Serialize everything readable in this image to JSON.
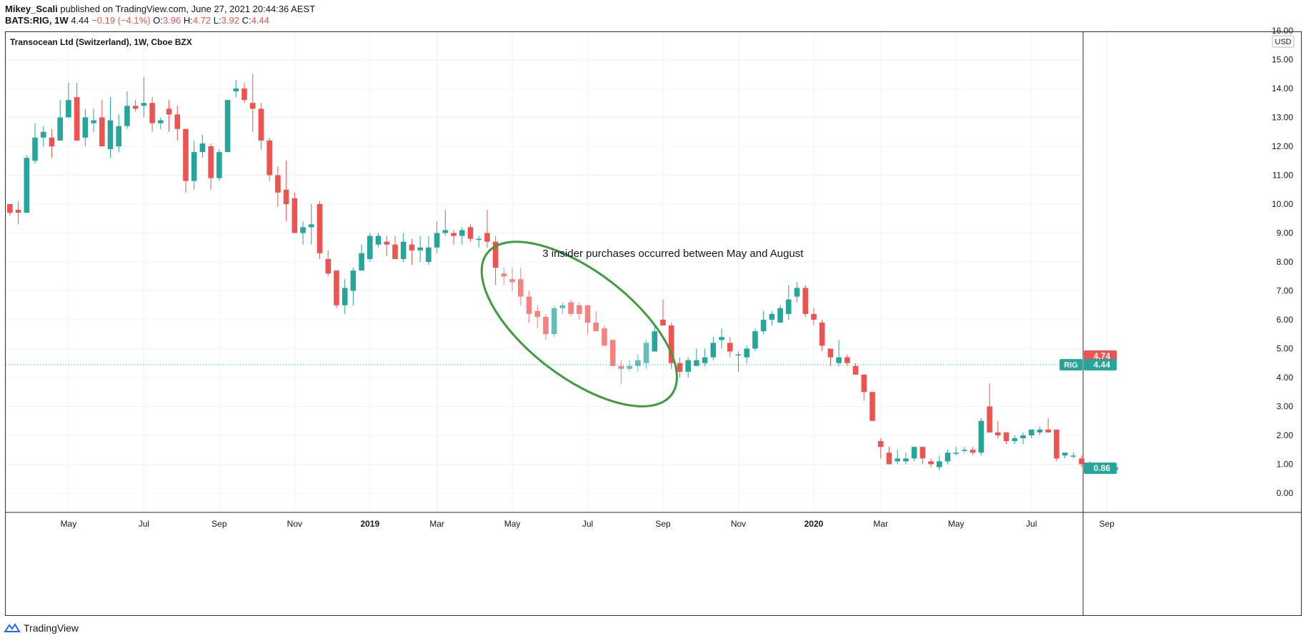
{
  "header": {
    "author": "Mikey_Scali",
    "published_text": "published on TradingView.com, June 27, 2021 20:44:36 AEST",
    "symbol": "BATS:RIG, 1W",
    "last": "4.44",
    "change": "−0.19 (−4.1%)",
    "o_label": "O:",
    "o_value": "3.96",
    "h_label": "H:",
    "h_value": "4.72",
    "l_label": "L:",
    "l_value": "3.92",
    "c_label": "C:",
    "c_value": "4.44"
  },
  "footer": {
    "brand": "TradingView",
    "logo_icon": "tradingview-logo-icon"
  },
  "colors": {
    "up": "#26a69a",
    "down": "#ef5350",
    "annotation": "#3f9b3f",
    "grid": "#f0f3fa"
  },
  "chart_data": {
    "type": "candlestick",
    "title": "Transocean Ltd (Switzerland), 1W, Cboe BZX",
    "currency": "USD",
    "ylim": [
      -0.6,
      16.0
    ],
    "y_ticks": [
      "16.00",
      "15.00",
      "14.00",
      "13.00",
      "12.00",
      "11.00",
      "10.00",
      "9.00",
      "8.00",
      "7.00",
      "6.00",
      "5.00",
      "4.00",
      "3.00",
      "2.00",
      "1.00",
      "0.00"
    ],
    "x_ticks": [
      {
        "label": "May",
        "index": 7.5,
        "bold": false
      },
      {
        "label": "Jul",
        "index": 16.5,
        "bold": false
      },
      {
        "label": "Sep",
        "index": 25.5,
        "bold": false
      },
      {
        "label": "Nov",
        "index": 34.5,
        "bold": false
      },
      {
        "label": "2019",
        "index": 43.5,
        "bold": true
      },
      {
        "label": "Mar",
        "index": 51.5,
        "bold": false
      },
      {
        "label": "May",
        "index": 60.5,
        "bold": false
      },
      {
        "label": "Jul",
        "index": 69.5,
        "bold": false
      },
      {
        "label": "Sep",
        "index": 78.5,
        "bold": false
      },
      {
        "label": "Nov",
        "index": 87.5,
        "bold": false
      },
      {
        "label": "2020",
        "index": 96.5,
        "bold": true
      },
      {
        "label": "Mar",
        "index": 104.5,
        "bold": false
      },
      {
        "label": "May",
        "index": 113.5,
        "bold": false
      },
      {
        "label": "Jul",
        "index": 122.5,
        "bold": false
      },
      {
        "label": "Sep",
        "index": 131.5,
        "bold": false
      }
    ],
    "price_labels": [
      {
        "text": "4.74",
        "value": 4.74,
        "color": "#ef5350",
        "tag": ""
      },
      {
        "text": "4.44",
        "value": 4.44,
        "color": "#26a69a",
        "tag": "RIG"
      },
      {
        "text": "0.86",
        "value": 0.86,
        "color": "#26a69a",
        "tag": ""
      }
    ],
    "last_price_line": 4.44,
    "annotation": {
      "text": "3 insider purchases occurred between May and August",
      "ellipse_start_index": 57.5,
      "ellipse_end_index": 79.5,
      "ellipse_top_value": 8.3,
      "ellipse_bottom_value": 3.4
    },
    "highlight_range": [
      59,
      76
    ],
    "ohlc": [
      [
        10.0,
        10.0,
        9.6,
        9.7
      ],
      [
        9.8,
        10.1,
        9.3,
        9.7
      ],
      [
        9.7,
        11.7,
        9.7,
        11.6
      ],
      [
        11.5,
        12.8,
        11.4,
        12.3
      ],
      [
        12.3,
        12.7,
        12.0,
        12.5
      ],
      [
        12.3,
        12.6,
        11.6,
        12.0
      ],
      [
        12.2,
        13.6,
        12.2,
        13.0
      ],
      [
        13.0,
        14.2,
        13.0,
        13.6
      ],
      [
        13.7,
        14.2,
        12.2,
        12.2
      ],
      [
        12.3,
        13.3,
        12.0,
        13.0
      ],
      [
        12.8,
        13.3,
        12.5,
        12.9
      ],
      [
        13.0,
        13.6,
        12.0,
        12.0
      ],
      [
        11.9,
        13.7,
        11.6,
        12.9
      ],
      [
        12.0,
        13.1,
        11.8,
        12.7
      ],
      [
        12.7,
        13.9,
        12.6,
        13.4
      ],
      [
        13.4,
        13.6,
        13.2,
        13.3
      ],
      [
        13.4,
        14.4,
        13.0,
        13.5
      ],
      [
        13.5,
        13.7,
        12.5,
        12.8
      ],
      [
        12.8,
        13.0,
        12.6,
        12.9
      ],
      [
        13.3,
        13.6,
        12.5,
        13.1
      ],
      [
        13.1,
        13.4,
        12.2,
        12.6
      ],
      [
        12.6,
        12.6,
        10.4,
        10.8
      ],
      [
        10.8,
        12.2,
        10.5,
        11.8
      ],
      [
        11.8,
        12.4,
        11.6,
        12.1
      ],
      [
        12.0,
        12.1,
        10.5,
        10.9
      ],
      [
        10.9,
        11.9,
        10.8,
        11.8
      ],
      [
        11.8,
        13.6,
        11.8,
        13.6
      ],
      [
        13.9,
        14.3,
        13.7,
        14.0
      ],
      [
        14.0,
        14.2,
        13.5,
        13.6
      ],
      [
        13.5,
        14.5,
        12.5,
        13.3
      ],
      [
        13.3,
        13.5,
        11.9,
        12.2
      ],
      [
        12.2,
        12.3,
        10.8,
        11.0
      ],
      [
        11.0,
        11.3,
        9.9,
        10.4
      ],
      [
        10.5,
        11.5,
        9.4,
        10.0
      ],
      [
        10.2,
        10.4,
        9.0,
        9.0
      ],
      [
        9.0,
        9.4,
        8.6,
        9.2
      ],
      [
        9.2,
        10.0,
        8.6,
        9.3
      ],
      [
        10.0,
        10.1,
        8.1,
        8.3
      ],
      [
        8.1,
        8.4,
        7.5,
        7.6
      ],
      [
        7.7,
        7.7,
        6.4,
        6.5
      ],
      [
        6.5,
        7.4,
        6.2,
        7.1
      ],
      [
        7.0,
        7.8,
        6.5,
        7.7
      ],
      [
        7.7,
        8.6,
        7.7,
        8.3
      ],
      [
        8.1,
        9.0,
        8.0,
        8.9
      ],
      [
        8.6,
        9.0,
        8.5,
        8.9
      ],
      [
        8.7,
        8.9,
        8.2,
        8.6
      ],
      [
        8.6,
        8.9,
        8.1,
        8.1
      ],
      [
        8.1,
        9.0,
        8.0,
        8.7
      ],
      [
        8.6,
        8.8,
        7.9,
        8.4
      ],
      [
        8.4,
        8.9,
        8.0,
        8.5
      ],
      [
        8.0,
        8.9,
        7.9,
        8.5
      ],
      [
        8.5,
        9.4,
        8.3,
        9.0
      ],
      [
        9.0,
        9.8,
        8.9,
        9.1
      ],
      [
        9.0,
        9.1,
        8.6,
        8.9
      ],
      [
        8.9,
        9.2,
        8.6,
        9.1
      ],
      [
        9.2,
        9.3,
        8.7,
        8.8
      ],
      [
        8.8,
        8.9,
        8.5,
        8.8
      ],
      [
        9.0,
        9.8,
        8.5,
        8.7
      ],
      [
        8.7,
        8.9,
        7.2,
        7.8
      ],
      [
        7.6,
        7.8,
        7.2,
        7.5
      ],
      [
        7.4,
        7.8,
        7.0,
        7.3
      ],
      [
        7.4,
        7.8,
        6.5,
        6.8
      ],
      [
        6.8,
        7.0,
        5.9,
        6.2
      ],
      [
        6.3,
        6.5,
        5.7,
        6.1
      ],
      [
        6.1,
        6.2,
        5.3,
        5.5
      ],
      [
        5.5,
        6.5,
        5.4,
        6.4
      ],
      [
        6.4,
        6.6,
        6.2,
        6.5
      ],
      [
        6.6,
        6.7,
        6.1,
        6.2
      ],
      [
        6.5,
        6.6,
        6.0,
        6.2
      ],
      [
        6.5,
        6.5,
        5.5,
        5.9
      ],
      [
        5.9,
        6.3,
        5.6,
        5.6
      ],
      [
        5.7,
        5.8,
        5.1,
        5.1
      ],
      [
        5.3,
        5.3,
        4.4,
        4.4
      ],
      [
        4.4,
        4.6,
        3.8,
        4.3
      ],
      [
        4.3,
        4.6,
        4.2,
        4.4
      ],
      [
        4.4,
        4.8,
        4.2,
        4.6
      ],
      [
        4.5,
        5.3,
        4.3,
        5.2
      ],
      [
        4.9,
        5.8,
        4.9,
        5.6
      ],
      [
        6.0,
        6.7,
        5.8,
        5.8
      ],
      [
        5.8,
        5.9,
        4.3,
        4.5
      ],
      [
        4.5,
        4.7,
        4.0,
        4.2
      ],
      [
        4.2,
        4.7,
        4.0,
        4.6
      ],
      [
        4.4,
        5.0,
        4.4,
        4.6
      ],
      [
        4.5,
        5.0,
        4.4,
        4.7
      ],
      [
        4.7,
        5.4,
        4.6,
        5.2
      ],
      [
        5.3,
        5.7,
        5.0,
        5.4
      ],
      [
        5.2,
        5.4,
        4.7,
        4.9
      ],
      [
        4.8,
        4.9,
        4.2,
        4.8
      ],
      [
        4.7,
        5.1,
        4.5,
        5.0
      ],
      [
        5.0,
        5.7,
        4.9,
        5.6
      ],
      [
        5.6,
        6.3,
        5.5,
        6.0
      ],
      [
        6.0,
        6.3,
        5.8,
        6.2
      ],
      [
        5.9,
        6.5,
        5.9,
        6.4
      ],
      [
        6.2,
        7.2,
        6.0,
        6.7
      ],
      [
        6.8,
        7.3,
        6.6,
        7.1
      ],
      [
        7.1,
        7.2,
        6.1,
        6.2
      ],
      [
        6.2,
        6.4,
        5.8,
        6.0
      ],
      [
        5.9,
        6.0,
        4.9,
        5.1
      ],
      [
        5.0,
        5.0,
        4.4,
        4.7
      ],
      [
        4.5,
        5.3,
        4.4,
        4.7
      ],
      [
        4.7,
        4.8,
        4.4,
        4.5
      ],
      [
        4.4,
        4.5,
        4.1,
        4.1
      ],
      [
        4.1,
        4.1,
        3.2,
        3.5
      ],
      [
        3.5,
        3.5,
        2.5,
        2.5
      ],
      [
        1.8,
        1.9,
        1.2,
        1.6
      ],
      [
        1.4,
        1.6,
        1.0,
        1.0
      ],
      [
        1.1,
        1.5,
        1.0,
        1.2
      ],
      [
        1.1,
        1.4,
        1.0,
        1.2
      ],
      [
        1.2,
        1.6,
        1.1,
        1.6
      ],
      [
        1.6,
        1.6,
        1.0,
        1.2
      ],
      [
        1.1,
        1.2,
        0.9,
        1.0
      ],
      [
        0.9,
        1.3,
        0.8,
        1.1
      ],
      [
        1.1,
        1.5,
        1.0,
        1.4
      ],
      [
        1.4,
        1.6,
        1.3,
        1.4
      ],
      [
        1.5,
        1.6,
        1.4,
        1.5
      ],
      [
        1.5,
        1.6,
        1.3,
        1.4
      ],
      [
        1.4,
        2.6,
        1.3,
        2.5
      ],
      [
        3.0,
        3.8,
        2.1,
        2.1
      ],
      [
        2.1,
        2.5,
        1.9,
        2.0
      ],
      [
        2.1,
        2.1,
        1.7,
        1.8
      ],
      [
        1.8,
        2.0,
        1.7,
        1.9
      ],
      [
        1.9,
        2.1,
        1.7,
        2.0
      ],
      [
        2.0,
        2.2,
        1.9,
        2.2
      ],
      [
        2.1,
        2.3,
        2.0,
        2.2
      ],
      [
        2.2,
        2.6,
        2.1,
        2.1
      ],
      [
        2.2,
        2.2,
        1.1,
        1.2
      ],
      [
        1.3,
        1.4,
        1.2,
        1.4
      ],
      [
        1.3,
        1.4,
        1.2,
        1.3
      ],
      [
        1.2,
        1.3,
        0.9,
        1.0
      ],
      [
        1.0,
        1.1,
        0.9,
        1.0
      ],
      [
        1.0,
        1.0,
        0.8,
        0.8
      ],
      [
        0.8,
        0.9,
        0.7,
        0.8
      ],
      [
        0.8,
        0.9,
        0.8,
        0.9
      ]
    ]
  }
}
